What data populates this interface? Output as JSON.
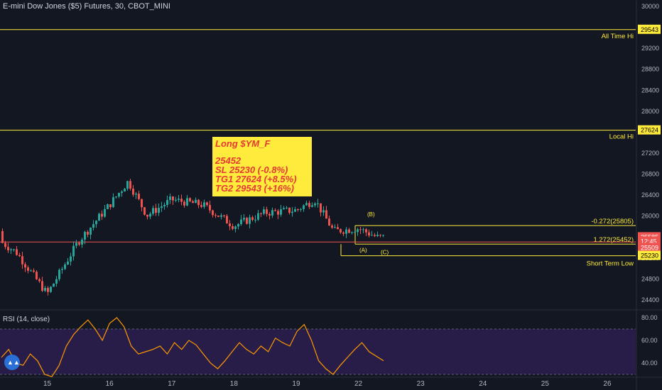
{
  "header": {
    "title": "E-mini Dow Jones ($5) Futures, 30, CBOT_MINI",
    "rsi_title": "RSI (14, close)"
  },
  "colors": {
    "background": "#131722",
    "up": "#26a69a",
    "down": "#ef5350",
    "level_line": "#ffeb3b",
    "red_line": "#ef5350",
    "rsi_line": "#ff9800",
    "rsi_band": "#2a1e4d",
    "label_bg": "#ffeb3b"
  },
  "note": {
    "heading": "Long $YM_F",
    "lines": [
      "25452",
      "SL 25230 (-0.8%)",
      "TG1 27624 (+8.5%)",
      "TG2 29543 (+16%)"
    ]
  },
  "chart_data": [
    {
      "type": "candlestick",
      "title": "E-mini Dow Jones ($5) Futures, 30, CBOT_MINI",
      "x_axis": {
        "tick_labels": [
          "15",
          "16",
          "17",
          "18",
          "19",
          "22",
          "23",
          "24",
          "25",
          "26"
        ]
      },
      "y_axis": {
        "range": [
          24100,
          30050
        ],
        "tick_labels": [
          "24400",
          "24800",
          "25200",
          "25600",
          "26000",
          "26400",
          "26800",
          "27200",
          "27600",
          "28000",
          "28400",
          "28800",
          "29200",
          "29600",
          "30000"
        ]
      },
      "price_path": [
        {
          "date": "14",
          "price": 25700
        },
        {
          "date": "14.5",
          "price": 25300
        },
        {
          "date": "15",
          "price": 24500
        },
        {
          "date": "15.5",
          "price": 25500
        },
        {
          "date": "16",
          "price": 26200
        },
        {
          "date": "16.3",
          "price": 26650
        },
        {
          "date": "16.6",
          "price": 26000
        },
        {
          "date": "17",
          "price": 26300
        },
        {
          "date": "17.5",
          "price": 26200
        },
        {
          "date": "18",
          "price": 25800
        },
        {
          "date": "18.5",
          "price": 26050
        },
        {
          "date": "19",
          "price": 26100
        },
        {
          "date": "19.3",
          "price": 26300
        },
        {
          "date": "19.6",
          "price": 25700
        },
        {
          "date": "22",
          "price": 25750
        },
        {
          "date": "22.3",
          "price": 25585
        }
      ],
      "horizontal_levels": [
        {
          "value": 29543,
          "label": "All Time Hi"
        },
        {
          "value": 27624,
          "label": "Local Hi"
        },
        {
          "value": 25805,
          "label": "-0.272(25805)"
        },
        {
          "value": 25452,
          "label": "1.272(25452)"
        },
        {
          "value": 25230,
          "label": "Short Term Low"
        }
      ],
      "price_labels": [
        "29543",
        "27624",
        "25585",
        "12:45",
        "25509",
        "25230"
      ],
      "wave_labels": [
        "(B)",
        "(A)",
        "(C)"
      ]
    },
    {
      "type": "line",
      "title": "RSI (14, close)",
      "y_axis": {
        "tick_labels": [
          "40.00",
          "60.00",
          "80.00"
        ]
      },
      "band": [
        30,
        70
      ],
      "values": [
        45,
        52,
        40,
        38,
        48,
        42,
        30,
        28,
        38,
        55,
        65,
        72,
        78,
        70,
        60,
        75,
        80,
        72,
        55,
        48,
        50,
        52,
        55,
        48,
        58,
        52,
        60,
        56,
        48,
        40,
        35,
        42,
        50,
        58,
        52,
        48,
        55,
        50,
        62,
        58,
        55,
        68,
        74,
        60,
        42,
        35,
        30,
        38,
        45,
        52,
        58,
        50,
        46,
        42
      ]
    }
  ]
}
